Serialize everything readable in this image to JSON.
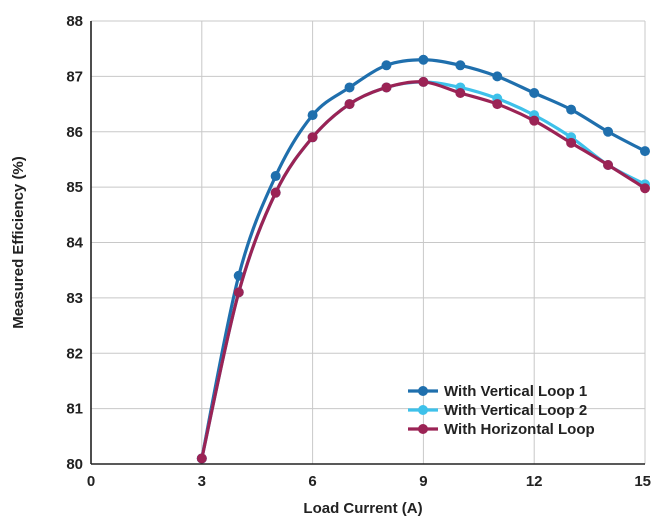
{
  "chart_data": {
    "type": "line",
    "title": "",
    "xlabel": "Load Current (A)",
    "ylabel": "Measured Efficiency (%)",
    "xlim": [
      0,
      15
    ],
    "ylim": [
      80,
      88
    ],
    "xticks": [
      0,
      3,
      6,
      9,
      12,
      15
    ],
    "yticks": [
      80,
      81,
      82,
      83,
      84,
      85,
      86,
      87,
      88
    ],
    "grid": true,
    "legend_position": "bottom-right",
    "series": [
      {
        "name": "With Vertical Loop 1",
        "color": "#1f6fad",
        "x": [
          3,
          4,
          5,
          6,
          7,
          8,
          9,
          10,
          11,
          12,
          13,
          14,
          15
        ],
        "y": [
          80.1,
          83.4,
          85.2,
          86.3,
          86.8,
          87.2,
          87.3,
          87.2,
          87.0,
          86.7,
          86.4,
          86.0,
          85.65
        ]
      },
      {
        "name": "With Vertical Loop 2",
        "color": "#3ec1ea",
        "x": [
          3,
          4,
          5,
          6,
          7,
          8,
          9,
          10,
          11,
          12,
          13,
          14,
          15
        ],
        "y": [
          80.1,
          83.1,
          84.9,
          85.9,
          86.5,
          86.8,
          86.9,
          86.8,
          86.6,
          86.3,
          85.9,
          85.4,
          85.05
        ]
      },
      {
        "name": "With Horizontal Loop",
        "color": "#9b2355",
        "x": [
          3,
          4,
          5,
          6,
          7,
          8,
          9,
          10,
          11,
          12,
          13,
          14,
          15
        ],
        "y": [
          80.1,
          83.1,
          84.9,
          85.9,
          86.5,
          86.8,
          86.9,
          86.7,
          86.5,
          86.2,
          85.8,
          85.4,
          84.98
        ]
      }
    ]
  }
}
